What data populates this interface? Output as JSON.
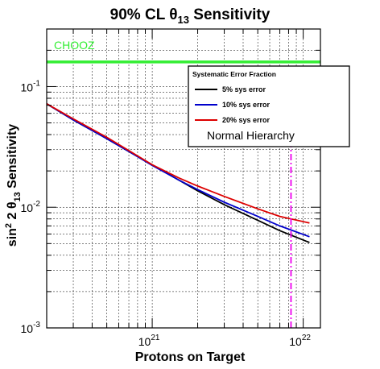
{
  "chart_data": {
    "type": "line",
    "title_prefix": "90% CL ",
    "title_theta": "θ",
    "title_theta_sub": "13",
    "title_suffix": " Sensitivity",
    "xlabel": "Protons on Target",
    "ylabel_parts": {
      "a": "sin",
      "sup": "2",
      "b": " 2 θ",
      "sub": "13",
      "c": " Sensitivity"
    },
    "x_scale": "log",
    "y_scale": "log",
    "xlim": [
      2e+20,
      1.3e+22
    ],
    "ylim": [
      0.001,
      0.3
    ],
    "x_ticks": [
      {
        "value": 1e+21,
        "base": "10",
        "exp": "21"
      },
      {
        "value": 1e+22,
        "base": "10",
        "exp": "22"
      }
    ],
    "y_ticks": [
      {
        "value": 0.001,
        "base": "10",
        "exp": "-3"
      },
      {
        "value": 0.01,
        "base": "10",
        "exp": "-2"
      },
      {
        "value": 0.1,
        "base": "10",
        "exp": "-1"
      }
    ],
    "grid": true,
    "legend": {
      "title": "Systematic Error Fraction",
      "placement": "top-right",
      "note": "Normal Hierarchy"
    },
    "series": [
      {
        "name": "5% sys error",
        "color": "#000000",
        "x": [
          2e+20,
          3e+20,
          5e+20,
          7e+20,
          1e+21,
          1.5e+21,
          2e+21,
          3e+21,
          5e+21,
          7e+21,
          1.1e+22
        ],
        "y": [
          0.072,
          0.053,
          0.037,
          0.029,
          0.0225,
          0.0168,
          0.0137,
          0.0105,
          0.0078,
          0.0064,
          0.0051
        ]
      },
      {
        "name": "10% sys error",
        "color": "#0000cc",
        "x": [
          2e+20,
          3e+20,
          5e+20,
          7e+20,
          1e+21,
          1.5e+21,
          2e+21,
          3e+21,
          5e+21,
          7e+21,
          1.1e+22
        ],
        "y": [
          0.072,
          0.053,
          0.037,
          0.029,
          0.0222,
          0.0168,
          0.014,
          0.011,
          0.0084,
          0.007,
          0.0057
        ]
      },
      {
        "name": "20% sys error",
        "color": "#dd0000",
        "x": [
          2e+20,
          3e+20,
          5e+20,
          7e+20,
          1e+21,
          1.5e+21,
          2e+21,
          3e+21,
          5e+21,
          7e+21,
          1.1e+22
        ],
        "y": [
          0.072,
          0.054,
          0.038,
          0.0295,
          0.0225,
          0.0175,
          0.015,
          0.0123,
          0.0097,
          0.0084,
          0.0074
        ]
      }
    ],
    "reference_line": {
      "label": "CHOOZ",
      "y": 0.16,
      "color": "#33ee33"
    },
    "marker_arrow": {
      "x": 8.3e+21,
      "y_from": 0.001,
      "y_to": 0.055,
      "color": "#ee00ee"
    }
  }
}
